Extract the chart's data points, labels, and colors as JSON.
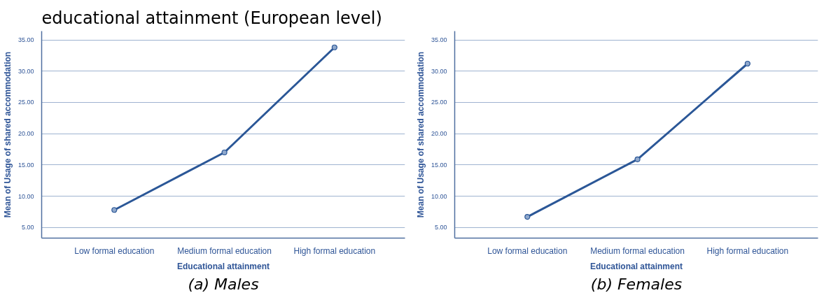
{
  "chart_data": [
    {
      "type": "line",
      "title": "educational attainment (European level)",
      "xlabel": "Educational attainment",
      "ylabel": "Mean of Usage of shared accommodation",
      "annotations": [
        "(a) Males"
      ],
      "categories": [
        "Low formal education",
        "Medium formal education",
        "High formal education"
      ],
      "series": [
        {
          "color": "#2b5797",
          "values": [
            7.8,
            17.0,
            33.8
          ]
        }
      ],
      "ylim": [
        3.3,
        36.4
      ],
      "yticks": [
        {
          "value": 5,
          "label": "5.00"
        },
        {
          "value": 10,
          "label": "10.00"
        },
        {
          "value": 15,
          "label": "15.00"
        },
        {
          "value": 20,
          "label": "20.00"
        },
        {
          "value": 25,
          "label": "25.00"
        },
        {
          "value": 30,
          "label": "30.00"
        },
        {
          "value": 35,
          "label": "35.00"
        }
      ],
      "grid": "y",
      "marker": "circle",
      "line_style": "solid"
    },
    {
      "type": "line",
      "xlabel": "Educational attainment",
      "ylabel": "Mean of Usage of shared accommodation",
      "annotations": [
        "(b) Females"
      ],
      "categories": [
        "Low formal education",
        "Medium formal education",
        "High formal education"
      ],
      "series": [
        {
          "color": "#2b5797",
          "values": [
            6.7,
            15.9,
            31.2
          ]
        }
      ],
      "ylim": [
        3.3,
        36.4
      ],
      "yticks": [
        {
          "value": 5,
          "label": "5.00"
        },
        {
          "value": 10,
          "label": "10.00"
        },
        {
          "value": 15,
          "label": "15.00"
        },
        {
          "value": 20,
          "label": "20.00"
        },
        {
          "value": 25,
          "label": "25.00"
        },
        {
          "value": 30,
          "label": "30.00"
        },
        {
          "value": 35,
          "label": "35.00"
        }
      ],
      "grid": "y",
      "marker": "circle",
      "line_style": "solid"
    }
  ]
}
